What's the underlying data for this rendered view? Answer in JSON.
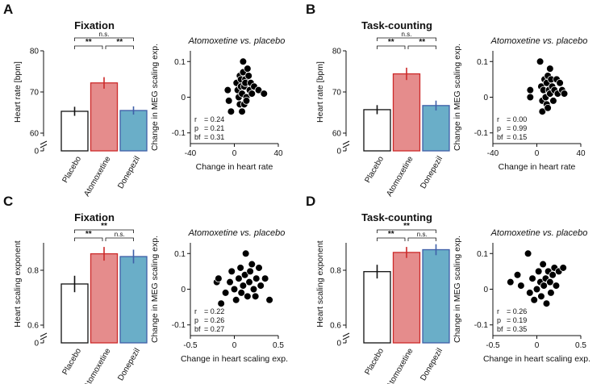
{
  "chart_data": [
    {
      "panel": "A",
      "title": "Fixation",
      "bar": {
        "type": "bar",
        "ylabel": "Heart rate [bpm]",
        "ylim": [
          60,
          80
        ],
        "yticks": [
          "60",
          "70",
          "80"
        ],
        "axis_break_label": "0",
        "categories": [
          "Placebo",
          "Atomoxetine",
          "Donepezil"
        ],
        "values": [
          65.3,
          72.2,
          65.5
        ],
        "errors": [
          1.1,
          1.4,
          1.0
        ],
        "significance": [
          {
            "from": 0,
            "to": 2,
            "label": "n.s."
          },
          {
            "from": 0,
            "to": 1,
            "label": "**"
          },
          {
            "from": 1,
            "to": 2,
            "label": "**"
          }
        ]
      },
      "scatter": {
        "type": "scatter",
        "title": "Atomoxetine vs. placebo",
        "xlabel": "Change in heart rate",
        "ylabel": "Change in MEG scaling exp.",
        "xlim": [
          -40,
          40
        ],
        "ylim": [
          -0.13,
          0.13
        ],
        "xticks": [
          "-40",
          "0",
          "40"
        ],
        "xtick_values": [
          -40,
          0,
          40
        ],
        "yticks": [
          "-0.1",
          "0",
          "0.1"
        ],
        "ytick_values": [
          -0.1,
          0,
          0.1
        ],
        "stats": {
          "r": "0.24",
          "p": "0.21",
          "bf": "0.31"
        },
        "points": [
          [
            -6,
            0.02
          ],
          [
            -5,
            -0.01
          ],
          [
            -3,
            -0.04
          ],
          [
            2,
            0.04
          ],
          [
            3,
            0.02
          ],
          [
            4,
            0.0
          ],
          [
            5,
            -0.02
          ],
          [
            5,
            0.06
          ],
          [
            6,
            0.03
          ],
          [
            6,
            0.05
          ],
          [
            7,
            0.01
          ],
          [
            7,
            -0.04
          ],
          [
            8,
            0.07
          ],
          [
            8,
            0.1
          ],
          [
            9,
            0.03
          ],
          [
            9,
            -0.02
          ],
          [
            10,
            0.05
          ],
          [
            10,
            0.04
          ],
          [
            11,
            0.0
          ],
          [
            11,
            -0.01
          ],
          [
            12,
            0.08
          ],
          [
            13,
            0.06
          ],
          [
            14,
            0.02
          ],
          [
            15,
            0.04
          ],
          [
            16,
            0.01
          ],
          [
            18,
            0.03
          ],
          [
            22,
            0.02
          ],
          [
            27,
            0.01
          ]
        ]
      }
    },
    {
      "panel": "B",
      "title": "Task-counting",
      "bar": {
        "type": "bar",
        "ylabel": "Heart rate [bpm]",
        "ylim": [
          60,
          80
        ],
        "yticks": [
          "60",
          "70",
          "80"
        ],
        "axis_break_label": "0",
        "categories": [
          "Placebo",
          "Atomoxetine",
          "Donepezil"
        ],
        "values": [
          65.7,
          74.4,
          66.7
        ],
        "errors": [
          1.1,
          1.5,
          1.2
        ],
        "significance": [
          {
            "from": 0,
            "to": 2,
            "label": "n.s."
          },
          {
            "from": 0,
            "to": 1,
            "label": "**"
          },
          {
            "from": 1,
            "to": 2,
            "label": "**"
          }
        ]
      },
      "scatter": {
        "type": "scatter",
        "title": "Atomoxetine vs. placebo",
        "xlabel": "Change in heart rate",
        "ylabel": "Change in MEG scaling exp.",
        "xlim": [
          -40,
          40
        ],
        "ylim": [
          -0.13,
          0.13
        ],
        "xticks": [
          "-40",
          "0",
          "40"
        ],
        "xtick_values": [
          -40,
          0,
          40
        ],
        "yticks": [
          "-0.1",
          "0",
          "0.1"
        ],
        "ytick_values": [
          -0.1,
          0,
          0.1
        ],
        "stats": {
          "r": "0.00",
          "p": "0.99",
          "bf": "0.15"
        },
        "points": [
          [
            -6,
            0.02
          ],
          [
            -6,
            0.0
          ],
          [
            3,
            0.1
          ],
          [
            4,
            0.03
          ],
          [
            5,
            -0.01
          ],
          [
            5,
            -0.04
          ],
          [
            6,
            0.02
          ],
          [
            7,
            0.05
          ],
          [
            8,
            0.0
          ],
          [
            9,
            0.04
          ],
          [
            9,
            -0.02
          ],
          [
            10,
            0.06
          ],
          [
            10,
            -0.03
          ],
          [
            11,
            0.02
          ],
          [
            12,
            0.01
          ],
          [
            12,
            0.08
          ],
          [
            13,
            0.05
          ],
          [
            14,
            0.03
          ],
          [
            15,
            -0.01
          ],
          [
            16,
            0.02
          ],
          [
            18,
            0.05
          ],
          [
            19,
            0.01
          ],
          [
            21,
            0.04
          ],
          [
            23,
            0.02
          ],
          [
            25,
            0.01
          ]
        ]
      }
    },
    {
      "panel": "C",
      "title": "Fixation",
      "bar": {
        "type": "bar",
        "ylabel": "Heart scaling exponent",
        "ylim": [
          0.6,
          0.9
        ],
        "yticks": [
          "0.6",
          "0.8"
        ],
        "axis_break_label": "0",
        "categories": [
          "Placebo",
          "Atomoxetine",
          "Donepezil"
        ],
        "values": [
          0.75,
          0.86,
          0.85
        ],
        "errors": [
          0.03,
          0.025,
          0.025
        ],
        "significance": [
          {
            "from": 0,
            "to": 2,
            "label": "**"
          },
          {
            "from": 0,
            "to": 1,
            "label": "**"
          },
          {
            "from": 1,
            "to": 2,
            "label": "n.s."
          }
        ]
      },
      "scatter": {
        "type": "scatter",
        "title": "Atomoxetine vs. placebo",
        "xlabel": "Change in heart scaling exp.",
        "ylabel": "Change in MEG scaling exp.",
        "xlim": [
          -0.5,
          0.5
        ],
        "ylim": [
          -0.13,
          0.13
        ],
        "xticks": [
          "-0.5",
          "0",
          "0.5"
        ],
        "xtick_values": [
          -0.5,
          0,
          0.5
        ],
        "yticks": [
          "-0.1",
          "0",
          "0.1"
        ],
        "ytick_values": [
          -0.1,
          0,
          0.1
        ],
        "stats": {
          "r": "0.22",
          "p": "0.26",
          "bf": "0.27"
        },
        "points": [
          [
            -0.2,
            0.02
          ],
          [
            -0.18,
            0.03
          ],
          [
            -0.15,
            -0.04
          ],
          [
            -0.1,
            -0.01
          ],
          [
            -0.05,
            0.02
          ],
          [
            -0.03,
            0.05
          ],
          [
            0.0,
            0.0
          ],
          [
            0.02,
            -0.03
          ],
          [
            0.05,
            0.03
          ],
          [
            0.07,
            0.06
          ],
          [
            0.08,
            -0.01
          ],
          [
            0.1,
            0.01
          ],
          [
            0.12,
            0.04
          ],
          [
            0.13,
            0.1
          ],
          [
            0.15,
            -0.02
          ],
          [
            0.17,
            0.02
          ],
          [
            0.18,
            0.05
          ],
          [
            0.2,
            0.07
          ],
          [
            0.22,
            0.0
          ],
          [
            0.24,
            -0.02
          ],
          [
            0.25,
            0.03
          ],
          [
            0.28,
            0.06
          ],
          [
            0.3,
            0.01
          ],
          [
            0.35,
            0.03
          ],
          [
            0.4,
            -0.03
          ]
        ]
      }
    },
    {
      "panel": "D",
      "title": "Task-counting",
      "bar": {
        "type": "bar",
        "ylabel": "Heart scaling exponent",
        "ylim": [
          0.6,
          0.9
        ],
        "yticks": [
          "0.6",
          "0.8"
        ],
        "axis_break_label": "0",
        "categories": [
          "Placebo",
          "Atomoxetine",
          "Donepezil"
        ],
        "values": [
          0.795,
          0.865,
          0.875
        ],
        "errors": [
          0.025,
          0.02,
          0.02
        ],
        "significance": [
          {
            "from": 0,
            "to": 2,
            "label": "**"
          },
          {
            "from": 0,
            "to": 1,
            "label": "**"
          },
          {
            "from": 1,
            "to": 2,
            "label": "n.s."
          }
        ]
      },
      "scatter": {
        "type": "scatter",
        "title": "Atomoxetine vs. placebo",
        "xlabel": "Change in heart scaling exp.",
        "ylabel": "Change in MEG scaling exp.",
        "xlim": [
          -0.5,
          0.5
        ],
        "ylim": [
          -0.13,
          0.13
        ],
        "xticks": [
          "-0.5",
          "0",
          "0.5"
        ],
        "xtick_values": [
          -0.5,
          0,
          0.5
        ],
        "yticks": [
          "-0.1",
          "0",
          "0.1"
        ],
        "ytick_values": [
          -0.1,
          0,
          0.1
        ],
        "stats": {
          "r": "0.26",
          "p": "0.19",
          "bf": "0.35"
        },
        "points": [
          [
            -0.3,
            0.02
          ],
          [
            -0.22,
            0.04
          ],
          [
            -0.18,
            0.01
          ],
          [
            -0.1,
            0.1
          ],
          [
            -0.08,
            -0.01
          ],
          [
            -0.05,
            0.03
          ],
          [
            -0.03,
            -0.03
          ],
          [
            0.0,
            0.0
          ],
          [
            0.02,
            0.05
          ],
          [
            0.04,
            0.02
          ],
          [
            0.05,
            -0.02
          ],
          [
            0.07,
            0.07
          ],
          [
            0.08,
            0.01
          ],
          [
            0.1,
            0.03
          ],
          [
            0.11,
            -0.04
          ],
          [
            0.13,
            0.05
          ],
          [
            0.15,
            0.02
          ],
          [
            0.16,
            -0.01
          ],
          [
            0.18,
            0.04
          ],
          [
            0.2,
            0.06
          ],
          [
            0.22,
            0.01
          ],
          [
            0.25,
            0.05
          ],
          [
            0.3,
            0.06
          ]
        ]
      }
    }
  ],
  "colors": {
    "placebo_fill": "#ffffff",
    "placebo_edge": "#111111",
    "atomoxetine_fill": "#e58c8c",
    "atomoxetine_edge": "#cc2a2a",
    "donepezil_fill": "#6aaec8",
    "donepezil_edge": "#3f5fa8",
    "point": "#000000",
    "point_edge": "#ffffff"
  }
}
